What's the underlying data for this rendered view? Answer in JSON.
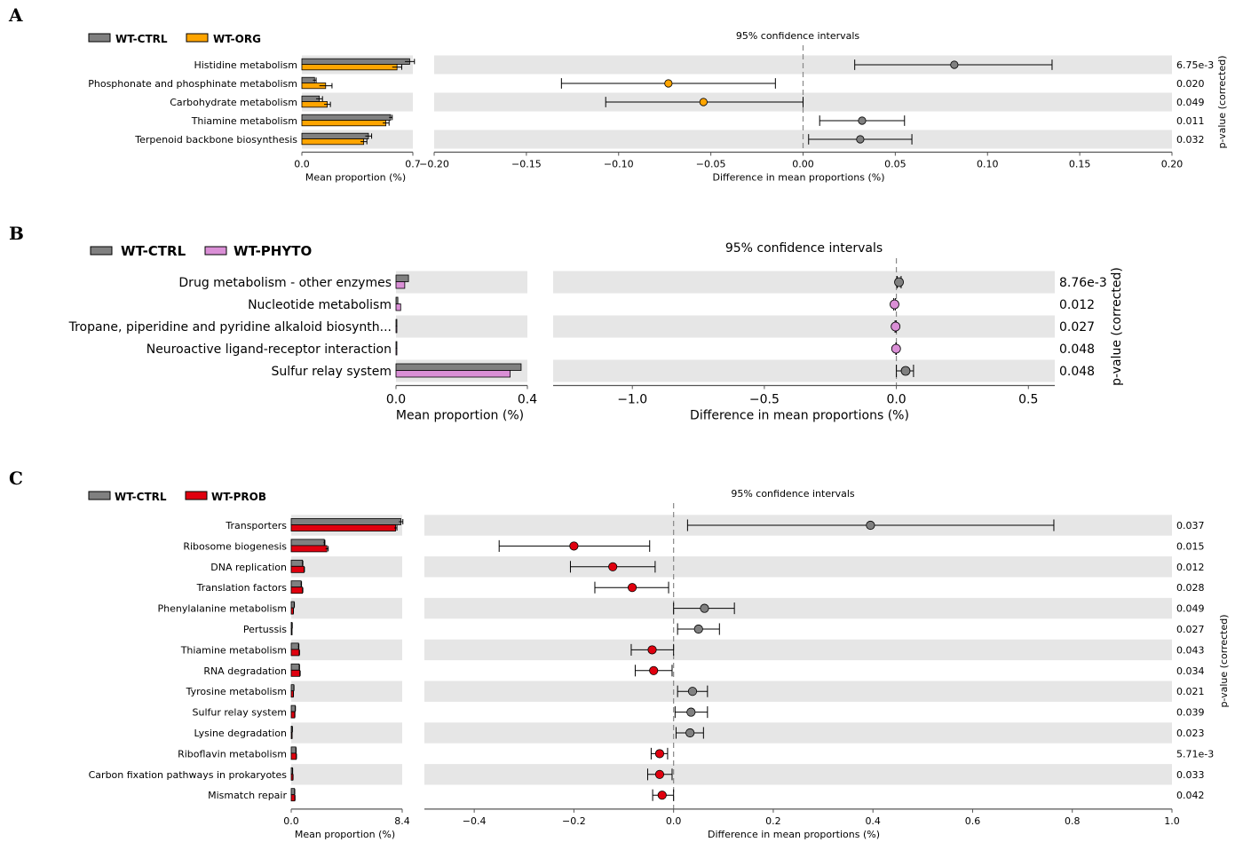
{
  "chart_data": [
    {
      "panel": "A",
      "type": "extended-error-bar",
      "legend": [
        {
          "name": "WT-CTRL",
          "color": "#808080"
        },
        {
          "name": "WT-ORG",
          "color": "#FFA500"
        }
      ],
      "ci_title": "95% confidence intervals",
      "categories": [
        "Histidine metabolism",
        "Phosphonate and phosphinate metabolism",
        "Carbohydrate metabolism",
        "Thiamine metabolism",
        "Terpenoid backbone biosynthesis"
      ],
      "mean_proportion": {
        "xlabel": "Mean proportion (%)",
        "xlim": [
          0,
          0.7
        ],
        "ticks": [
          "0.0",
          "0.7"
        ],
        "series": [
          {
            "name": "WT-CTRL",
            "values": [
              0.68,
              0.08,
              0.11,
              0.56,
              0.42
            ],
            "err": [
              0.03,
              0.01,
              0.02,
              0.01,
              0.02
            ]
          },
          {
            "name": "WT-ORG",
            "values": [
              0.6,
              0.15,
              0.16,
              0.53,
              0.39
            ],
            "err": [
              0.03,
              0.04,
              0.02,
              0.02,
              0.02
            ]
          }
        ]
      },
      "difference": {
        "xlabel": "Difference in mean proportions (%)",
        "xlim": [
          -0.2,
          0.2
        ],
        "ticks": [
          "−0.20",
          "−0.15",
          "−0.10",
          "−0.05",
          "0.00",
          "0.05",
          "0.10",
          "0.15",
          "0.20"
        ],
        "values": [
          0.082,
          -0.073,
          -0.054,
          0.032,
          0.031
        ],
        "ci_low": [
          0.028,
          -0.131,
          -0.107,
          0.009,
          0.003
        ],
        "ci_high": [
          0.135,
          -0.015,
          0.0,
          0.055,
          0.059
        ],
        "colors": [
          "#808080",
          "#FFA500",
          "#FFA500",
          "#808080",
          "#808080"
        ]
      },
      "pvalue_label": "p-value (corrected)",
      "pvalues": [
        "6.75e-3",
        "0.020",
        "0.049",
        "0.011",
        "0.032"
      ]
    },
    {
      "panel": "B",
      "type": "extended-error-bar",
      "legend": [
        {
          "name": "WT-CTRL",
          "color": "#808080"
        },
        {
          "name": "WT-PHYTO",
          "color": "#DA8FD6"
        }
      ],
      "ci_title": "95% confidence intervals",
      "categories": [
        "Drug metabolism - other enzymes",
        "Nucleotide metabolism",
        "Tropane, piperidine and pyridine alkaloid biosynth...",
        "Neuroactive ligand-receptor interaction",
        "Sulfur relay system"
      ],
      "mean_proportion": {
        "xlabel": "Mean proportion (%)",
        "xlim": [
          0,
          0.42
        ],
        "ticks": [
          "0.0",
          "0.4"
        ],
        "series": [
          {
            "name": "WT-CTRL",
            "values": [
              0.04,
              0.006,
              0.002,
              0.001,
              0.4
            ],
            "err": [
              0,
              0,
              0,
              0,
              0
            ]
          },
          {
            "name": "WT-PHYTO",
            "values": [
              0.028,
              0.015,
              0.002,
              0.001,
              0.365
            ],
            "err": [
              0,
              0,
              0,
              0,
              0
            ]
          }
        ]
      },
      "difference": {
        "xlabel": "Difference in mean proportions (%)",
        "xlim": [
          -1.3,
          0.6
        ],
        "ticks": [
          "−1.0",
          "−0.5",
          "0.0",
          "0.5"
        ],
        "values": [
          0.01,
          -0.007,
          -0.003,
          -0.001,
          0.035
        ],
        "ci_low": [
          0.003,
          -0.01,
          -0.005,
          -0.002,
          0.0
        ],
        "ci_high": [
          0.018,
          -0.004,
          -0.001,
          0.0,
          0.065
        ],
        "colors": [
          "#808080",
          "#DA8FD6",
          "#DA8FD6",
          "#DA8FD6",
          "#808080"
        ]
      },
      "pvalue_label": "p-value (corrected)",
      "pvalues": [
        "8.76e-3",
        "0.012",
        "0.027",
        "0.048",
        "0.048"
      ]
    },
    {
      "panel": "C",
      "type": "extended-error-bar",
      "legend": [
        {
          "name": "WT-CTRL",
          "color": "#808080"
        },
        {
          "name": "WT-PROB",
          "color": "#E0000F"
        }
      ],
      "ci_title": "95% confidence intervals",
      "categories": [
        "Transporters",
        "Ribosome biogenesis",
        "DNA replication",
        "Translation factors",
        "Phenylalanine metabolism",
        "Pertussis",
        "Thiamine metabolism",
        "RNA degradation",
        "Tyrosine metabolism",
        "Sulfur relay system",
        "Lysine degradation",
        "Riboflavin metabolism",
        "Carbon fixation pathways in prokaryotes",
        "Mismatch repair"
      ],
      "mean_proportion": {
        "xlabel": "Mean proportion (%)",
        "xlim": [
          0,
          8.4
        ],
        "ticks": [
          "0.0",
          "8.4"
        ],
        "series": [
          {
            "name": "WT-CTRL",
            "values": [
              8.3,
              2.5,
              0.85,
              0.75,
              0.22,
              0.07,
              0.55,
              0.6,
              0.2,
              0.3,
              0.08,
              0.35,
              0.1,
              0.25
            ],
            "err": [
              0.15,
              0.05,
              0.03,
              0.03,
              0.02,
              0.01,
              0.03,
              0.03,
              0.01,
              0.02,
              0.01,
              0.02,
              0.01,
              0.02
            ]
          },
          {
            "name": "WT-PROB",
            "values": [
              7.9,
              2.7,
              0.97,
              0.85,
              0.16,
              0.02,
              0.6,
              0.65,
              0.16,
              0.26,
              0.05,
              0.38,
              0.13,
              0.27
            ],
            "err": [
              0.1,
              0.1,
              0.03,
              0.03,
              0.01,
              0.01,
              0.03,
              0.03,
              0.01,
              0.02,
              0.01,
              0.02,
              0.01,
              0.02
            ]
          }
        ]
      },
      "difference": {
        "xlabel": "Difference in mean proportions (%)",
        "xlim": [
          -0.5,
          1.0
        ],
        "ticks": [
          "−0.4",
          "−0.2",
          "0.0",
          "0.2",
          "0.4",
          "0.6",
          "0.8",
          "1.0"
        ],
        "values": [
          0.395,
          -0.2,
          -0.122,
          -0.083,
          0.062,
          0.05,
          -0.043,
          -0.04,
          0.038,
          0.035,
          0.033,
          -0.028,
          -0.028,
          -0.023
        ],
        "ci_low": [
          0.028,
          -0.35,
          -0.207,
          -0.158,
          0.0,
          0.008,
          -0.085,
          -0.077,
          0.008,
          0.003,
          0.005,
          -0.045,
          -0.052,
          -0.042
        ],
        "ci_high": [
          0.763,
          -0.048,
          -0.037,
          -0.01,
          0.122,
          0.092,
          0.0,
          -0.003,
          0.068,
          0.068,
          0.06,
          -0.012,
          -0.003,
          0.0
        ],
        "colors": [
          "#808080",
          "#E0000F",
          "#E0000F",
          "#E0000F",
          "#808080",
          "#808080",
          "#E0000F",
          "#E0000F",
          "#808080",
          "#808080",
          "#808080",
          "#E0000F",
          "#E0000F",
          "#E0000F"
        ]
      },
      "pvalue_label": "p-value (corrected)",
      "pvalues": [
        "0.037",
        "0.015",
        "0.012",
        "0.028",
        "0.049",
        "0.027",
        "0.043",
        "0.034",
        "0.021",
        "0.039",
        "0.023",
        "5.71e-3",
        "0.033",
        "0.042"
      ]
    }
  ]
}
